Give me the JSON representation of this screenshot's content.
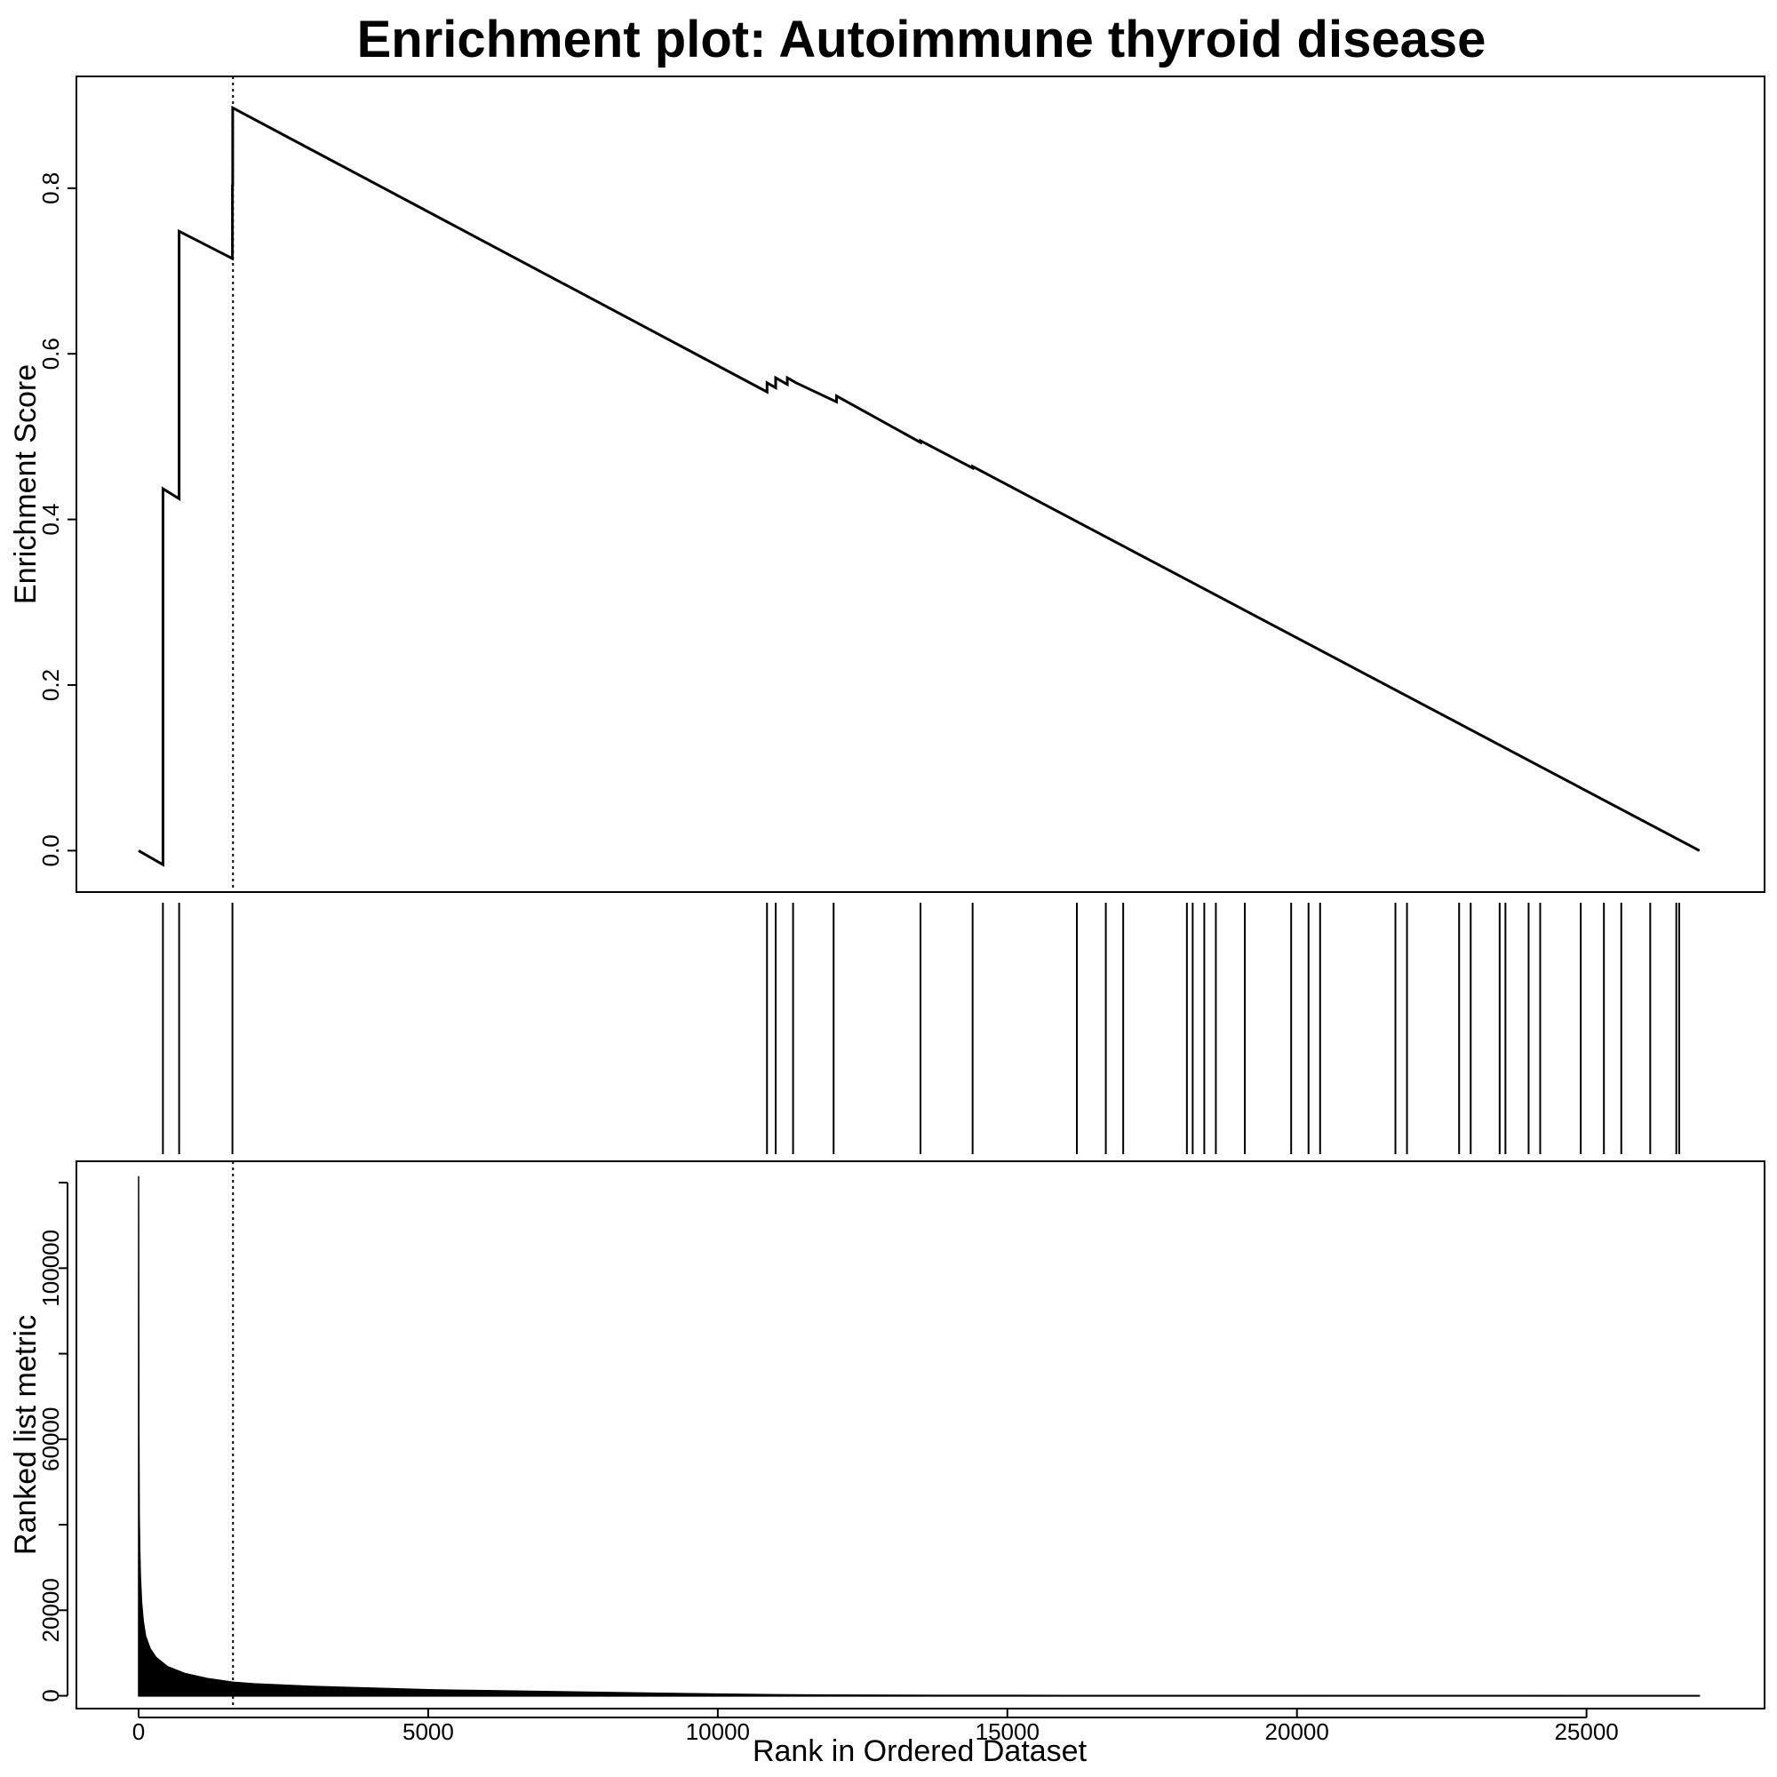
{
  "chart_data": {
    "type": "line",
    "title": "Enrichment plot: Autoimmune thyroid disease",
    "xlabel": "Rank in Ordered Dataset",
    "xlim": [
      0,
      27000
    ],
    "x_ticks": [
      0,
      5000,
      10000,
      15000,
      20000,
      25000
    ],
    "x_tick_labels": [
      "0",
      "5000",
      "10000",
      "15000",
      "20000",
      "25000"
    ],
    "grid": false,
    "leading_edge_rank": 1630,
    "enrichment_panel": {
      "ylabel": "Enrichment Score",
      "ylim": [
        -0.05,
        0.935
      ],
      "y_ticks": [
        0.0,
        0.2,
        0.4,
        0.6,
        0.8
      ],
      "y_tick_labels": [
        "0.0",
        "0.2",
        "0.4",
        "0.6",
        "0.8"
      ],
      "series": [
        {
          "x": [
            0,
            420,
            420,
            700,
            700,
            1620,
            1620,
            1625,
            1625,
            10850,
            10850,
            11000,
            11000,
            11200,
            11200,
            11350,
            11350,
            12050,
            12050,
            13500,
            13500,
            14400,
            14400,
            26950
          ],
          "y": [
            0.0,
            -0.017,
            0.437,
            0.425,
            0.748,
            0.715,
            0.803,
            0.803,
            0.897,
            0.554,
            0.565,
            0.559,
            0.571,
            0.563,
            0.571,
            0.565,
            0.565,
            0.542,
            0.549,
            0.493,
            0.495,
            0.462,
            0.464,
            0.0
          ]
        }
      ]
    },
    "hits_panel": {
      "hit_ranks": [
        420,
        700,
        1620,
        10850,
        11000,
        11300,
        12000,
        13500,
        14400,
        16200,
        16700,
        17000,
        18100,
        18200,
        18400,
        18600,
        19100,
        19900,
        20200,
        20400,
        21700,
        21900,
        22800,
        23000,
        23500,
        23600,
        24000,
        24200,
        24900,
        25300,
        25600,
        26100,
        26550,
        26600
      ]
    },
    "metric_panel": {
      "ylabel": "Ranked list metric",
      "ylim": [
        -3000,
        125000
      ],
      "y_ticks": [
        0,
        20000,
        40000,
        60000,
        80000,
        100000,
        120000
      ],
      "y_tick_labels": [
        "0",
        "20000",
        "",
        "60000",
        "",
        "100000",
        ""
      ],
      "type": "area",
      "x": [
        0,
        5,
        10,
        20,
        30,
        50,
        80,
        120,
        200,
        300,
        500,
        800,
        1200,
        1620,
        2000,
        3000,
        4000,
        5000,
        6000,
        7000,
        8000,
        9000,
        10000,
        11000,
        12000,
        14000,
        16000,
        18000,
        20000,
        22000,
        24000,
        26000,
        26950
      ],
      "y": [
        121500,
        63000,
        42000,
        34000,
        28000,
        22000,
        17500,
        14000,
        11000,
        9000,
        6800,
        5200,
        4000,
        3200,
        2800,
        2200,
        1800,
        1400,
        1200,
        1000,
        800,
        600,
        400,
        250,
        150,
        100,
        80,
        60,
        50,
        40,
        30,
        20,
        10
      ]
    }
  }
}
